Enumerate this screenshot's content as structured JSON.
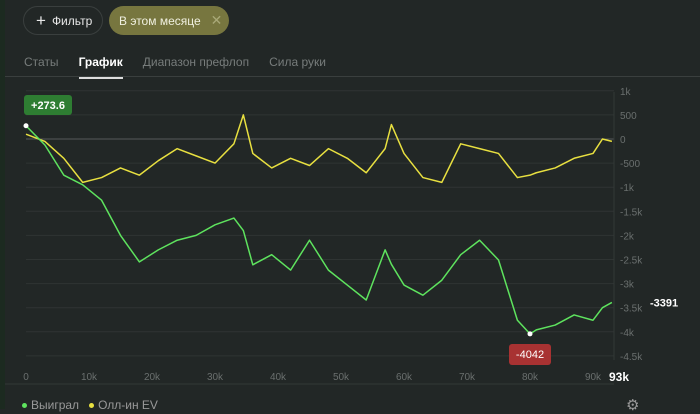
{
  "toolbar": {
    "filter_label": "Фильтр",
    "filter_icon": "plus-icon",
    "chip_label": "В этом месяце",
    "chip_close_icon": "close-icon"
  },
  "tabs": [
    {
      "label": "Статы",
      "active": false
    },
    {
      "label": "График",
      "active": true
    },
    {
      "label": "Диапазон префлоп",
      "active": false
    },
    {
      "label": "Сила руки",
      "active": false
    }
  ],
  "chart_data": {
    "type": "line",
    "x": [
      0,
      3,
      6,
      9,
      12,
      15,
      18,
      21,
      24,
      27,
      30,
      33,
      34.5,
      36,
      39,
      42,
      45,
      48,
      51,
      54,
      57,
      58,
      60,
      63,
      66,
      69,
      72,
      75,
      78,
      80,
      81,
      84,
      87,
      90,
      91.5,
      93
    ],
    "x_unit": "k",
    "series": [
      {
        "name": "Выиграл",
        "color": "#5ee35e",
        "values": [
          274,
          -125,
          -750,
          -950,
          -1270,
          -2000,
          -2550,
          -2300,
          -2100,
          -2000,
          -1780,
          -1640,
          -1900,
          -2610,
          -2400,
          -2720,
          -2100,
          -2720,
          -3030,
          -3340,
          -2300,
          -2600,
          -3030,
          -3240,
          -2930,
          -2400,
          -2100,
          -2510,
          -3760,
          -4042,
          -3960,
          -3860,
          -3650,
          -3760,
          -3500,
          -3391
        ]
      },
      {
        "name": "Олл-ин EV",
        "color": "#e8e040",
        "values": [
          100,
          -50,
          -400,
          -900,
          -800,
          -600,
          -750,
          -450,
          -200,
          -350,
          -500,
          -100,
          500,
          -300,
          -600,
          -400,
          -550,
          -200,
          -400,
          -700,
          -200,
          300,
          -300,
          -800,
          -900,
          -100,
          -200,
          -300,
          -800,
          -750,
          -700,
          -600,
          -400,
          -300,
          0,
          -50
        ]
      }
    ],
    "ylim": [
      -4500,
      1000
    ],
    "y_ticks": [
      "1k",
      "500",
      "0",
      "-500",
      "-1k",
      "-1.5k",
      "-2k",
      "-2.5k",
      "-3k",
      "-3.5k",
      "-4k",
      "-4.5k"
    ],
    "y_tick_values": [
      1000,
      500,
      0,
      -500,
      -1000,
      -1500,
      -2000,
      -2500,
      -3000,
      -3500,
      -4000,
      -4500
    ],
    "x_ticks": [
      "0",
      "10k",
      "20k",
      "30k",
      "40k",
      "50k",
      "60k",
      "70k",
      "80k",
      "90k"
    ],
    "x_tick_values": [
      0,
      10,
      20,
      30,
      40,
      50,
      60,
      70,
      80,
      90
    ],
    "x_end_label": "93k",
    "max_label": "+273.6",
    "min_label": "-4042",
    "last_label": "-3391",
    "max_color": "#2e7d32",
    "min_color": "#a83232",
    "grid": true,
    "legend": "bottom-left"
  },
  "settings_icon": "gear-icon"
}
